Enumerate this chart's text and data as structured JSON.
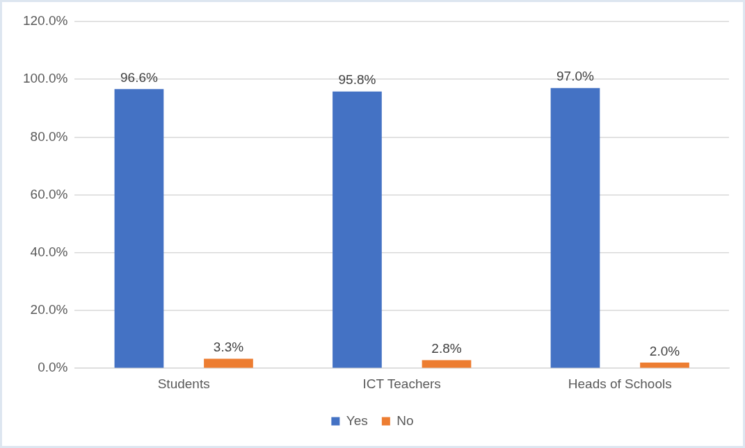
{
  "chart_data": {
    "type": "bar",
    "categories": [
      "Students",
      "ICT Teachers",
      "Heads of Schools"
    ],
    "series": [
      {
        "name": "Yes",
        "color": "#4472c4",
        "values": [
          96.6,
          95.8,
          97.0
        ],
        "value_labels": [
          "96.6%",
          "95.8%",
          "97.0%"
        ]
      },
      {
        "name": "No",
        "color": "#ed7d31",
        "values": [
          3.3,
          2.8,
          2.0
        ],
        "value_labels": [
          "3.3%",
          "2.8%",
          "2.0%"
        ]
      }
    ],
    "ylim": [
      0,
      120
    ],
    "yticks": [
      {
        "value": 0,
        "label": "0.0%"
      },
      {
        "value": 20,
        "label": "20.0%"
      },
      {
        "value": 40,
        "label": "40.0%"
      },
      {
        "value": 60,
        "label": "60.0%"
      },
      {
        "value": 80,
        "label": "80.0%"
      },
      {
        "value": 100,
        "label": "100.0%"
      },
      {
        "value": 120,
        "label": "120.0%"
      }
    ],
    "grid": "y",
    "legend": "bottom"
  }
}
